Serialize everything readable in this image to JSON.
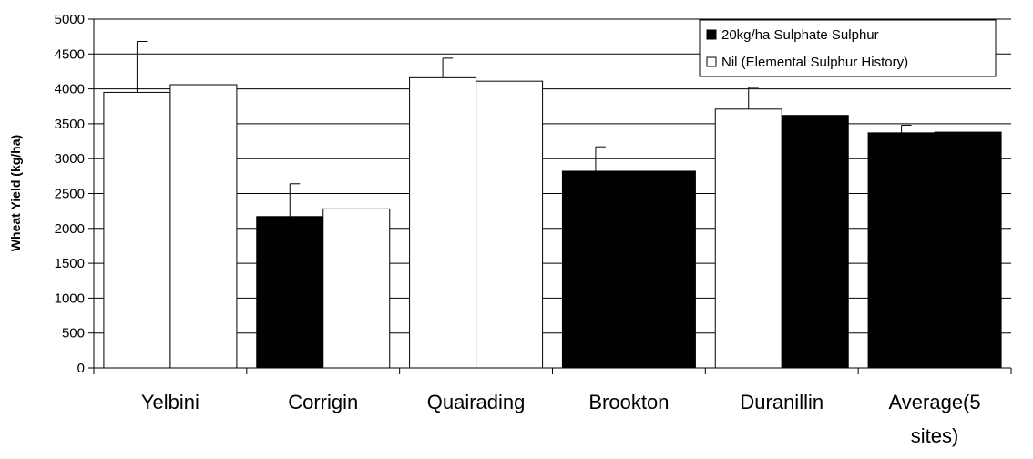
{
  "chart_data": {
    "type": "bar",
    "title": "",
    "xlabel": "",
    "ylabel": "Wheat Yield (kg/ha)",
    "ylim": [
      0,
      5000
    ],
    "ytick_step": 500,
    "ytick_labels": [
      "0",
      "500",
      "1000",
      "1500",
      "2000",
      "2500",
      "3000",
      "3500",
      "4000",
      "4500",
      "5000"
    ],
    "grid": true,
    "legend_position": "top-right",
    "categories": [
      "Yelbini",
      "Corrigin",
      "Quairading",
      "Brookton",
      "Duranillin",
      "Average(5 sites)"
    ],
    "category_lines": [
      [
        "Yelbini"
      ],
      [
        "Corrigin"
      ],
      [
        "Quairading"
      ],
      [
        "Brookton"
      ],
      [
        "Duranillin"
      ],
      [
        "Average(5",
        "sites)"
      ]
    ],
    "series": [
      {
        "name": "20kg/ha Sulphate Sulphur",
        "legend_swatch": "black",
        "values": [
          3950,
          2170,
          4160,
          2820,
          3710,
          3370
        ],
        "error": [
          730,
          470,
          280,
          350,
          310,
          110
        ]
      },
      {
        "name": "Nil (Elemental Sulphur History)",
        "legend_swatch": "white",
        "values": [
          4060,
          2280,
          4110,
          2820,
          3620,
          3380
        ]
      }
    ],
    "bar_fill": [
      [
        "#ffffff",
        "#ffffff"
      ],
      [
        "#000000",
        "#ffffff"
      ],
      [
        "#ffffff",
        "#ffffff"
      ],
      [
        "#000000",
        "#000000"
      ],
      [
        "#ffffff",
        "#000000"
      ],
      [
        "#000000",
        "#000000"
      ]
    ],
    "colors": {
      "black": "#000000",
      "white": "#ffffff",
      "grid": "#000000"
    }
  }
}
